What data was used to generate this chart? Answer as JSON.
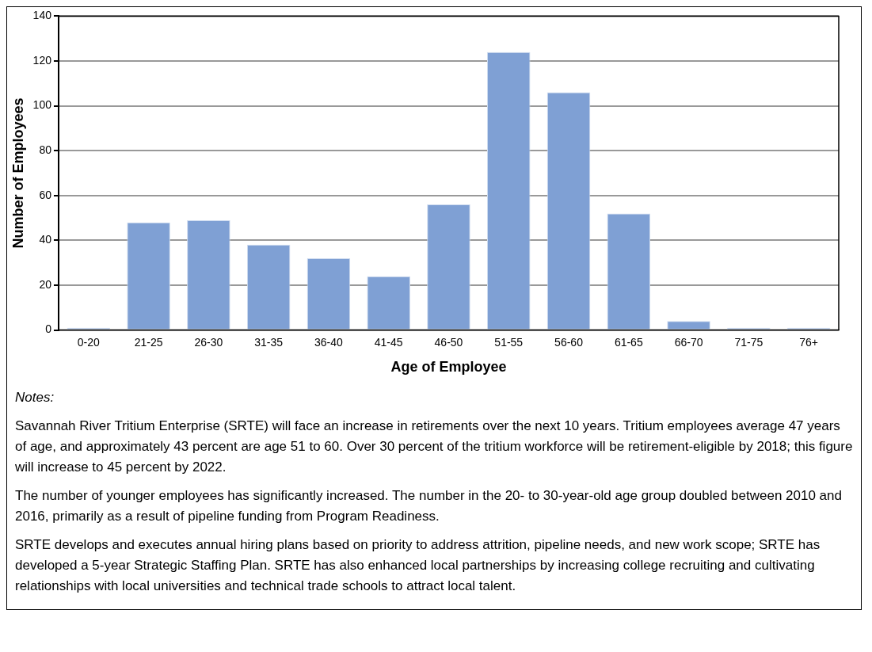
{
  "chart_data": {
    "type": "bar",
    "xlabel": "Age of Employee",
    "ylabel": "Number of Employees",
    "categories": [
      "0-20",
      "21-25",
      "26-30",
      "31-35",
      "36-40",
      "41-45",
      "46-50",
      "51-55",
      "56-60",
      "61-65",
      "66-70",
      "71-75",
      "76+"
    ],
    "values": [
      1,
      48,
      49,
      38,
      32,
      24,
      56,
      124,
      106,
      52,
      4,
      1,
      1
    ],
    "color": "#7fa0d4",
    "ylim": [
      0,
      140
    ],
    "yticks": [
      0,
      20,
      40,
      60,
      80,
      100,
      120,
      140
    ],
    "grid": "y",
    "annotations": [
      "Notes:",
      "Savannah River Tritium Enterprise (SRTE) will face an increase in retirements over the next 10 years.  Tritium employees average 47 years of age, and approximately 43 percent are age 51 to 60.  Over 30 percent of the tritium workforce will be retirement-eligible by 2018; this figure will increase to 45 percent by 2022.",
      "The number of younger employees has significantly increased.  The number in the 20- to 30-year-old age group doubled between 2010 and 2016, primarily as a result of pipeline funding from Program Readiness.",
      "SRTE develops and executes annual hiring plans based on priority to address attrition, pipeline needs, and new work scope; SRTE has developed a 5-year Strategic Staffing Plan.  SRTE has also enhanced local partnerships by increasing college recruiting and cultivating relationships with local universities and technical trade schools to attract local talent."
    ]
  }
}
